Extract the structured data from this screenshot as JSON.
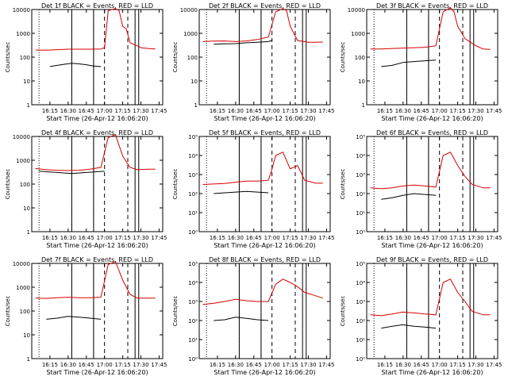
{
  "colors": {
    "events": "#000000",
    "lld": "#d40000",
    "axes": "#000000",
    "background": "#ffffff"
  },
  "x_ticks": [
    "16:15",
    "16:30",
    "16:45",
    "17:00",
    "17:15",
    "17:30",
    "17:45"
  ],
  "xlabel": "Start Time (26-Apr-12 16:06:20)",
  "ylabel": "Counts/sec",
  "chart_data": [
    {
      "type": "line",
      "title": "Det 1f BLACK = Events, RED = LLD",
      "ylabel": "Counts/sec",
      "xlabel": "Start Time (26-Apr-12 16:06:20)",
      "y_scale": "log",
      "ylim": [
        1,
        10000
      ],
      "y_ticks": [
        "1",
        "10",
        "100",
        "1000",
        "10000"
      ],
      "x_ticks": [
        "16:15",
        "16:30",
        "16:45",
        "17:00",
        "17:15",
        "17:30",
        "17:45"
      ],
      "series": [
        {
          "color": "black",
          "points": [
            [
              16.25,
              40
            ],
            [
              16.35,
              45
            ],
            [
              16.45,
              50
            ],
            [
              16.55,
              55
            ],
            [
              16.65,
              52
            ],
            [
              16.75,
              48
            ],
            [
              16.85,
              42
            ],
            [
              16.95,
              40
            ]
          ]
        },
        {
          "color": "red",
          "points": [
            [
              16.05,
              200
            ],
            [
              16.2,
              195
            ],
            [
              16.35,
              205
            ],
            [
              16.5,
              215
            ],
            [
              16.65,
              215
            ],
            [
              16.8,
              215
            ],
            [
              16.95,
              220
            ],
            [
              17.0,
              250
            ],
            [
              17.05,
              9000
            ],
            [
              17.15,
              11000
            ],
            [
              17.2,
              9000
            ],
            [
              17.25,
              2000
            ],
            [
              17.3,
              1500
            ],
            [
              17.35,
              400
            ],
            [
              17.45,
              300
            ],
            [
              17.5,
              250
            ],
            [
              17.6,
              230
            ],
            [
              17.7,
              220
            ]
          ]
        }
      ]
    },
    {
      "type": "line",
      "title": "Det 2f BLACK = Events, RED = LLD",
      "ylabel": "Counts/sec",
      "xlabel": "Start Time (26-Apr-12 16:06:20)",
      "y_scale": "log",
      "ylim": [
        1,
        10000
      ],
      "y_ticks": [
        "1",
        "10",
        "100",
        "1000",
        "10000"
      ],
      "x_ticks": [
        "16:15",
        "16:30",
        "16:45",
        "17:00",
        "17:15",
        "17:30",
        "17:45"
      ],
      "series": [
        {
          "color": "black",
          "points": [
            [
              16.2,
              350
            ],
            [
              16.35,
              360
            ],
            [
              16.5,
              370
            ],
            [
              16.65,
              400
            ],
            [
              16.8,
              420
            ],
            [
              16.95,
              450
            ],
            [
              17.0,
              500
            ]
          ]
        },
        {
          "color": "red",
          "points": [
            [
              16.05,
              450
            ],
            [
              16.2,
              470
            ],
            [
              16.35,
              480
            ],
            [
              16.5,
              450
            ],
            [
              16.65,
              480
            ],
            [
              16.8,
              550
            ],
            [
              16.95,
              700
            ],
            [
              17.05,
              8000
            ],
            [
              17.15,
              11000
            ],
            [
              17.2,
              9000
            ],
            [
              17.25,
              2000
            ],
            [
              17.35,
              500
            ],
            [
              17.5,
              420
            ],
            [
              17.6,
              420
            ],
            [
              17.7,
              430
            ]
          ]
        }
      ]
    },
    {
      "type": "line",
      "title": "Det 3f BLACK = Events, RED = LLD",
      "ylabel": "Counts/sec",
      "xlabel": "Start Time (26-Apr-12 16:06:20)",
      "y_scale": "log",
      "ylim": [
        1,
        10000
      ],
      "y_ticks": [
        "1",
        "10",
        "100",
        "1000",
        "10000"
      ],
      "x_ticks": [
        "16:15",
        "16:30",
        "16:45",
        "17:00",
        "17:15",
        "17:30",
        "17:45"
      ],
      "series": [
        {
          "color": "black",
          "points": [
            [
              16.2,
              40
            ],
            [
              16.35,
              45
            ],
            [
              16.5,
              60
            ],
            [
              16.65,
              65
            ],
            [
              16.8,
              70
            ],
            [
              16.95,
              75
            ]
          ]
        },
        {
          "color": "red",
          "points": [
            [
              16.05,
              220
            ],
            [
              16.2,
              220
            ],
            [
              16.35,
              230
            ],
            [
              16.5,
              240
            ],
            [
              16.65,
              250
            ],
            [
              16.8,
              260
            ],
            [
              16.95,
              300
            ],
            [
              17.05,
              8000
            ],
            [
              17.15,
              12000
            ],
            [
              17.2,
              8000
            ],
            [
              17.25,
              2000
            ],
            [
              17.35,
              600
            ],
            [
              17.5,
              300
            ],
            [
              17.6,
              220
            ],
            [
              17.7,
              210
            ]
          ]
        }
      ]
    },
    {
      "type": "line",
      "title": "Det 4f BLACK = Events, RED = LLD",
      "ylabel": "Counts/sec",
      "xlabel": "Start Time (26-Apr-12 16:06:20)",
      "y_scale": "log",
      "ylim": [
        1,
        10000
      ],
      "y_ticks": [
        "1",
        "10",
        "100",
        "1000",
        "10000"
      ],
      "x_ticks": [
        "16:15",
        "16:30",
        "16:45",
        "17:00",
        "17:15",
        "17:30",
        "17:45"
      ],
      "series": [
        {
          "color": "black",
          "points": [
            [
              16.1,
              350
            ],
            [
              16.25,
              320
            ],
            [
              16.4,
              300
            ],
            [
              16.55,
              280
            ],
            [
              16.7,
              300
            ],
            [
              16.85,
              320
            ],
            [
              17.0,
              350
            ]
          ]
        },
        {
          "color": "red",
          "points": [
            [
              16.05,
              450
            ],
            [
              16.2,
              400
            ],
            [
              16.35,
              380
            ],
            [
              16.5,
              370
            ],
            [
              16.65,
              380
            ],
            [
              16.8,
              420
            ],
            [
              16.95,
              500
            ],
            [
              17.05,
              9000
            ],
            [
              17.15,
              12000
            ],
            [
              17.25,
              1500
            ],
            [
              17.35,
              500
            ],
            [
              17.45,
              400
            ],
            [
              17.6,
              420
            ],
            [
              17.7,
              420
            ]
          ]
        }
      ]
    },
    {
      "type": "line",
      "title": "Det 5f BLACK = Events, RED = LLD",
      "ylabel": "Counts/sec",
      "xlabel": "Start Time (26-Apr-12 16:06:20)",
      "y_scale": "log",
      "ylim": [
        1,
        100000
      ],
      "y_ticks": [
        "10⁰",
        "10¹",
        "10²",
        "10³",
        "10⁴",
        "10⁵"
      ],
      "x_ticks": [
        "16:15",
        "16:30",
        "16:45",
        "17:00",
        "17:15",
        "17:30",
        "17:45"
      ],
      "series": [
        {
          "color": "black",
          "points": [
            [
              16.2,
              100
            ],
            [
              16.35,
              110
            ],
            [
              16.5,
              120
            ],
            [
              16.65,
              130
            ],
            [
              16.8,
              120
            ],
            [
              16.95,
              110
            ]
          ]
        },
        {
          "color": "red",
          "points": [
            [
              16.05,
              300
            ],
            [
              16.2,
              320
            ],
            [
              16.35,
              340
            ],
            [
              16.5,
              400
            ],
            [
              16.65,
              450
            ],
            [
              16.8,
              450
            ],
            [
              16.95,
              500
            ],
            [
              17.0,
              2000
            ],
            [
              17.05,
              10000
            ],
            [
              17.15,
              15000
            ],
            [
              17.25,
              2000
            ],
            [
              17.35,
              3000
            ],
            [
              17.45,
              500
            ],
            [
              17.6,
              350
            ],
            [
              17.7,
              350
            ]
          ]
        }
      ]
    },
    {
      "type": "line",
      "title": "Det 6f BLACK = Events, RED = LLD",
      "ylabel": "Counts/sec",
      "xlabel": "Start Time (26-Apr-12 16:06:20)",
      "y_scale": "log",
      "ylim": [
        1,
        100000
      ],
      "y_ticks": [
        "10⁰",
        "10¹",
        "10²",
        "10³",
        "10⁴",
        "10⁵"
      ],
      "x_ticks": [
        "16:15",
        "16:30",
        "16:45",
        "17:00",
        "17:15",
        "17:30",
        "17:45"
      ],
      "series": [
        {
          "color": "black",
          "points": [
            [
              16.2,
              50
            ],
            [
              16.35,
              60
            ],
            [
              16.5,
              80
            ],
            [
              16.65,
              100
            ],
            [
              16.8,
              90
            ],
            [
              16.95,
              80
            ]
          ]
        },
        {
          "color": "red",
          "points": [
            [
              16.05,
              200
            ],
            [
              16.2,
              180
            ],
            [
              16.35,
              200
            ],
            [
              16.5,
              250
            ],
            [
              16.65,
              280
            ],
            [
              16.8,
              250
            ],
            [
              16.95,
              220
            ],
            [
              17.05,
              10000
            ],
            [
              17.15,
              15000
            ],
            [
              17.25,
              3000
            ],
            [
              17.35,
              800
            ],
            [
              17.45,
              300
            ],
            [
              17.6,
              200
            ],
            [
              17.7,
              200
            ]
          ]
        }
      ]
    },
    {
      "type": "line",
      "title": "Det 7f BLACK = Events, RED = LLD",
      "ylabel": "Counts/sec",
      "xlabel": "Start Time (26-Apr-12 16:06:20)",
      "y_scale": "log",
      "ylim": [
        1,
        10000
      ],
      "y_ticks": [
        "1",
        "10",
        "100",
        "1000",
        "10000"
      ],
      "x_ticks": [
        "16:15",
        "16:30",
        "16:45",
        "17:00",
        "17:15",
        "17:30",
        "17:45"
      ],
      "series": [
        {
          "color": "black",
          "points": [
            [
              16.2,
              45
            ],
            [
              16.35,
              50
            ],
            [
              16.5,
              60
            ],
            [
              16.65,
              55
            ],
            [
              16.8,
              50
            ],
            [
              16.95,
              45
            ]
          ]
        },
        {
          "color": "red",
          "points": [
            [
              16.05,
              350
            ],
            [
              16.2,
              340
            ],
            [
              16.35,
              360
            ],
            [
              16.5,
              380
            ],
            [
              16.65,
              360
            ],
            [
              16.8,
              360
            ],
            [
              16.95,
              380
            ],
            [
              17.05,
              9000
            ],
            [
              17.15,
              12000
            ],
            [
              17.25,
              2000
            ],
            [
              17.35,
              500
            ],
            [
              17.45,
              350
            ],
            [
              17.6,
              350
            ],
            [
              17.7,
              350
            ]
          ]
        }
      ]
    },
    {
      "type": "line",
      "title": "Det 8f BLACK = Events, RED = LLD",
      "ylabel": "Counts/sec",
      "xlabel": "Start Time (26-Apr-12 16:06:20)",
      "y_scale": "log",
      "ylim": [
        1,
        100000
      ],
      "y_ticks": [
        "10⁰",
        "10¹",
        "10²",
        "10³",
        "10⁴",
        "10⁵"
      ],
      "x_ticks": [
        "16:15",
        "16:30",
        "16:45",
        "17:00",
        "17:15",
        "17:30",
        "17:45"
      ],
      "series": [
        {
          "color": "black",
          "points": [
            [
              16.2,
              100
            ],
            [
              16.35,
              110
            ],
            [
              16.5,
              150
            ],
            [
              16.65,
              130
            ],
            [
              16.8,
              110
            ],
            [
              16.95,
              100
            ]
          ]
        },
        {
          "color": "red",
          "points": [
            [
              16.05,
              700
            ],
            [
              16.2,
              800
            ],
            [
              16.35,
              1000
            ],
            [
              16.5,
              1300
            ],
            [
              16.65,
              1100
            ],
            [
              16.8,
              1000
            ],
            [
              16.95,
              1000
            ],
            [
              17.05,
              8000
            ],
            [
              17.15,
              15000
            ],
            [
              17.25,
              10000
            ],
            [
              17.35,
              6000
            ],
            [
              17.45,
              3000
            ],
            [
              17.6,
              2000
            ],
            [
              17.7,
              1500
            ]
          ]
        }
      ]
    },
    {
      "type": "line",
      "title": "Det 9f BLACK = Events, RED = LLD",
      "ylabel": "Counts/sec",
      "xlabel": "Start Time (26-Apr-12 16:06:20)",
      "y_scale": "log",
      "ylim": [
        1,
        100000
      ],
      "y_ticks": [
        "10⁰",
        "10¹",
        "10²",
        "10³",
        "10⁴",
        "10⁵"
      ],
      "x_ticks": [
        "16:15",
        "16:30",
        "16:45",
        "17:00",
        "17:15",
        "17:30",
        "17:45"
      ],
      "series": [
        {
          "color": "black",
          "points": [
            [
              16.2,
              40
            ],
            [
              16.35,
              50
            ],
            [
              16.5,
              60
            ],
            [
              16.65,
              50
            ],
            [
              16.8,
              45
            ],
            [
              16.95,
              40
            ]
          ]
        },
        {
          "color": "red",
          "points": [
            [
              16.05,
              200
            ],
            [
              16.2,
              180
            ],
            [
              16.35,
              220
            ],
            [
              16.5,
              280
            ],
            [
              16.65,
              250
            ],
            [
              16.8,
              220
            ],
            [
              16.95,
              200
            ],
            [
              17.05,
              10000
            ],
            [
              17.15,
              15000
            ],
            [
              17.25,
              3000
            ],
            [
              17.35,
              1000
            ],
            [
              17.45,
              300
            ],
            [
              17.6,
              200
            ],
            [
              17.7,
              200
            ]
          ]
        }
      ]
    }
  ]
}
